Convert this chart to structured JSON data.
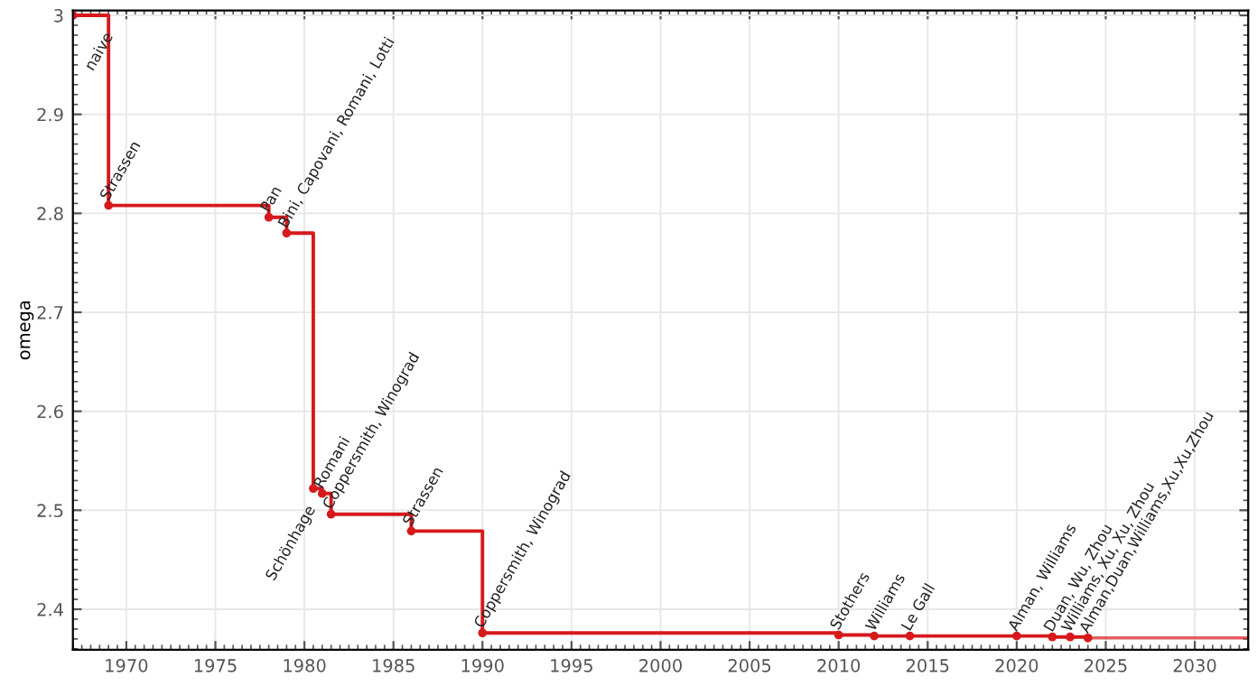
{
  "chart_data": {
    "type": "step",
    "ylabel": "omega",
    "series": [
      {
        "color": "#d7191c",
        "x": [
          1967,
          1969,
          1978,
          1979,
          1980.5,
          1981,
          1981.5,
          1986,
          1990,
          2010,
          2012,
          2014,
          2020,
          2022,
          2023,
          2024
        ],
        "values": [
          3,
          2.808,
          2.796,
          2.78,
          2.522,
          2.517,
          2.496,
          2.479,
          2.376,
          2.374,
          2.373,
          2.373,
          2.373,
          2.372,
          2.372,
          2.371
        ]
      }
    ],
    "annotations": [
      {
        "text": "naive",
        "x": 1967,
        "y": 3
      },
      {
        "text": "Strassen",
        "x": 1969,
        "y": 2.808
      },
      {
        "text": "Pan",
        "x": 1978,
        "y": 2.796
      },
      {
        "text": "Bini, Capovani, Romani, Lotti",
        "x": 1979,
        "y": 2.78
      },
      {
        "text": "Schönhage",
        "x": 1980.5,
        "y": 2.522
      },
      {
        "text": "Romani",
        "x": 1981,
        "y": 2.517
      },
      {
        "text": "Coppersmith, Winograd",
        "x": 1981.5,
        "y": 2.496
      },
      {
        "text": "Strassen",
        "x": 1986,
        "y": 2.479
      },
      {
        "text": "Coppersmith, Winograd",
        "x": 1990,
        "y": 2.376
      },
      {
        "text": "Stothers",
        "x": 2010,
        "y": 2.374
      },
      {
        "text": "Williams",
        "x": 2012,
        "y": 2.373
      },
      {
        "text": "Le Gall",
        "x": 2014,
        "y": 2.373
      },
      {
        "text": "Alman, Williams",
        "x": 2020,
        "y": 2.373
      },
      {
        "text": "Duan, Wu, Zhou",
        "x": 2022,
        "y": 2.372
      },
      {
        "text": "Williams, Xu, Xu, Zhou",
        "x": 2023,
        "y": 2.372
      },
      {
        "text": "Alman,Duan,Williams,Xu,Xu,Zhou",
        "x": 2024,
        "y": 2.371
      }
    ],
    "xlim": [
      1967,
      2033
    ],
    "xticks": [
      1970,
      1975,
      1980,
      1985,
      1990,
      1995,
      2000,
      2005,
      2010,
      2015,
      2020,
      2025,
      2030
    ],
    "ylim": [
      2.359,
      3.005
    ],
    "yticks": [
      2.4,
      2.5,
      2.6,
      2.7,
      2.8,
      2.9,
      3
    ],
    "grid": true,
    "marker": "circle",
    "line_style": "solid"
  }
}
